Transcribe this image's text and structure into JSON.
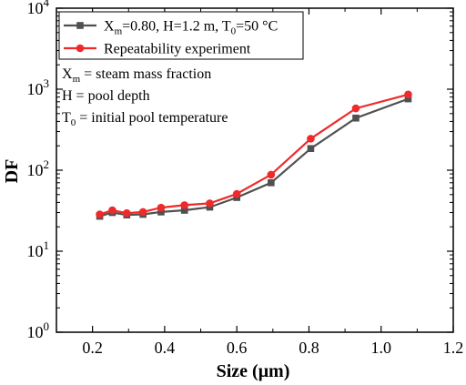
{
  "chart_data": {
    "type": "line",
    "xlabel": "Size (μm)",
    "ylabel": "DF",
    "xlim": [
      0.1,
      1.2
    ],
    "ylim": [
      1,
      10000
    ],
    "yscale": "log",
    "x_ticks": [
      0.2,
      0.4,
      0.6,
      0.8,
      1.0,
      1.2
    ],
    "x_tick_labels": [
      "0.2",
      "0.4",
      "0.6",
      "0.8",
      "1.0",
      "1.2"
    ],
    "y_ticks": [
      1,
      10,
      100,
      1000,
      10000
    ],
    "y_tick_labels": [
      {
        "base": "10",
        "exp": "0"
      },
      {
        "base": "10",
        "exp": "1"
      },
      {
        "base": "10",
        "exp": "2"
      },
      {
        "base": "10",
        "exp": "3"
      },
      {
        "base": "10",
        "exp": "4"
      }
    ],
    "grid": false,
    "legend_position": "top-left",
    "series": [
      {
        "name": "Xm=0.80, H=1.2 m, T0=50 °C",
        "name_parts": {
          "a": "X",
          "a_sub": "m",
          "b": "=0.80, H=1.2 m, T",
          "b_sub": "0",
          "c": "=50 °C"
        },
        "color": "#505050",
        "marker": "square",
        "x": [
          0.22,
          0.255,
          0.295,
          0.34,
          0.39,
          0.455,
          0.525,
          0.6,
          0.695,
          0.805,
          0.93,
          1.075
        ],
        "y": [
          27,
          30,
          28,
          28.5,
          30.5,
          32,
          35,
          46,
          70,
          185,
          440,
          760
        ]
      },
      {
        "name": "Repeatability experiment",
        "color": "#ee2a2a",
        "marker": "circle",
        "x": [
          0.22,
          0.255,
          0.295,
          0.34,
          0.39,
          0.455,
          0.525,
          0.6,
          0.695,
          0.805,
          0.93,
          1.075
        ],
        "y": [
          28.5,
          32,
          29.5,
          30.5,
          34.5,
          37,
          39,
          51,
          88,
          245,
          580,
          860
        ]
      }
    ],
    "annotations": [
      {
        "base": "X",
        "sub": "m",
        "rest": " = steam mass fraction"
      },
      {
        "base": "H = pool depth",
        "sub": "",
        "rest": ""
      },
      {
        "base": "T",
        "sub": "0",
        "rest": " = initial pool temperature"
      }
    ]
  }
}
